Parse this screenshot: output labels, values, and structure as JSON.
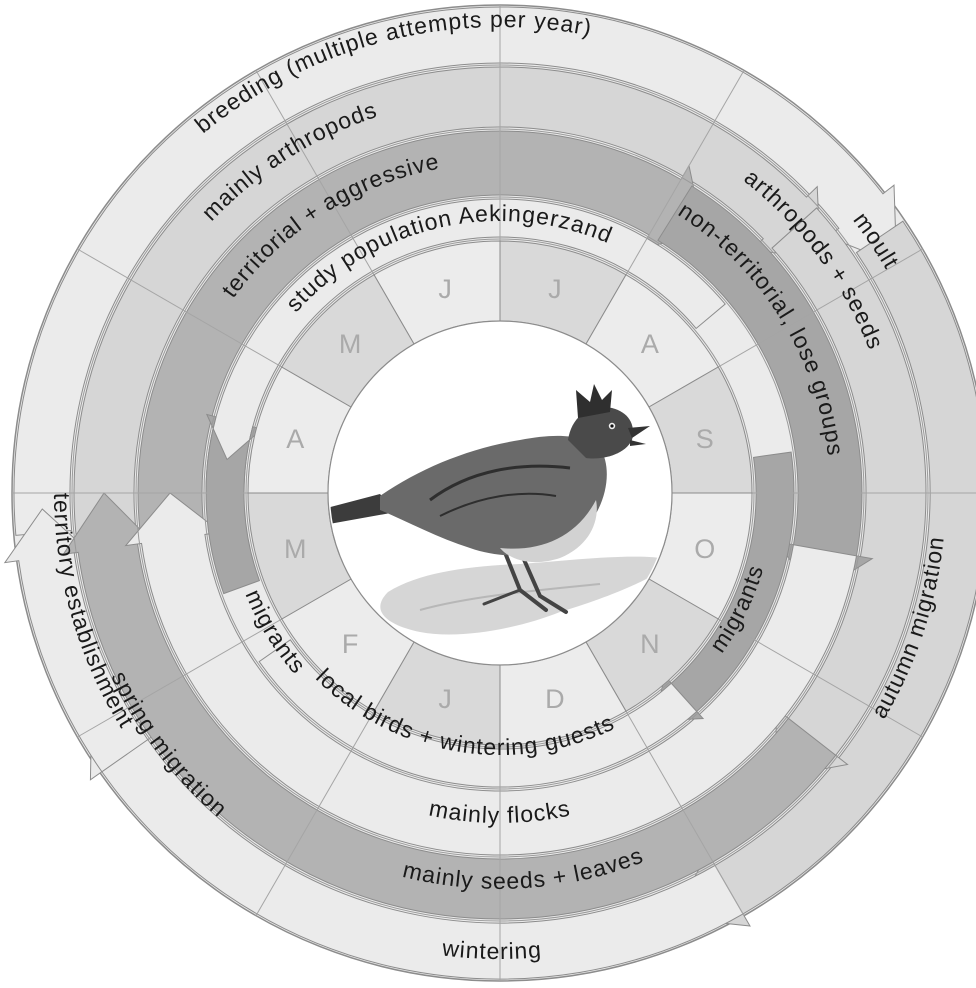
{
  "study_population": "study population Aekingerzand",
  "months": [
    "J",
    "J",
    "A",
    "S",
    "O",
    "N",
    "D",
    "J",
    "F",
    "M",
    "A",
    "M"
  ],
  "cycle": {
    "outer_ring": [
      "breeding (multiple attempts per year)",
      "moult",
      "autumn migration",
      "wintering",
      "spring migration",
      "territory establishment"
    ],
    "diet_ring": [
      "mainly arthropods",
      "arthropods + seeds",
      "mainly seeds + leaves"
    ],
    "social_ring": [
      "territorial + aggressive",
      "non-territorial, lose groups",
      "mainly flocks"
    ],
    "population_ring": [
      "migrants",
      "local birds + wintering guests",
      "migrants"
    ]
  },
  "colors": {
    "light": "#ebebeb",
    "mid": "#d6d6d6",
    "dark": "#b3b3b3",
    "darkest": "#a6a6a6",
    "stroke": "#8c8c8c",
    "month_a": "#d9d9d9",
    "month_b": "#ececec"
  },
  "illustration": "crested-lark-icon"
}
